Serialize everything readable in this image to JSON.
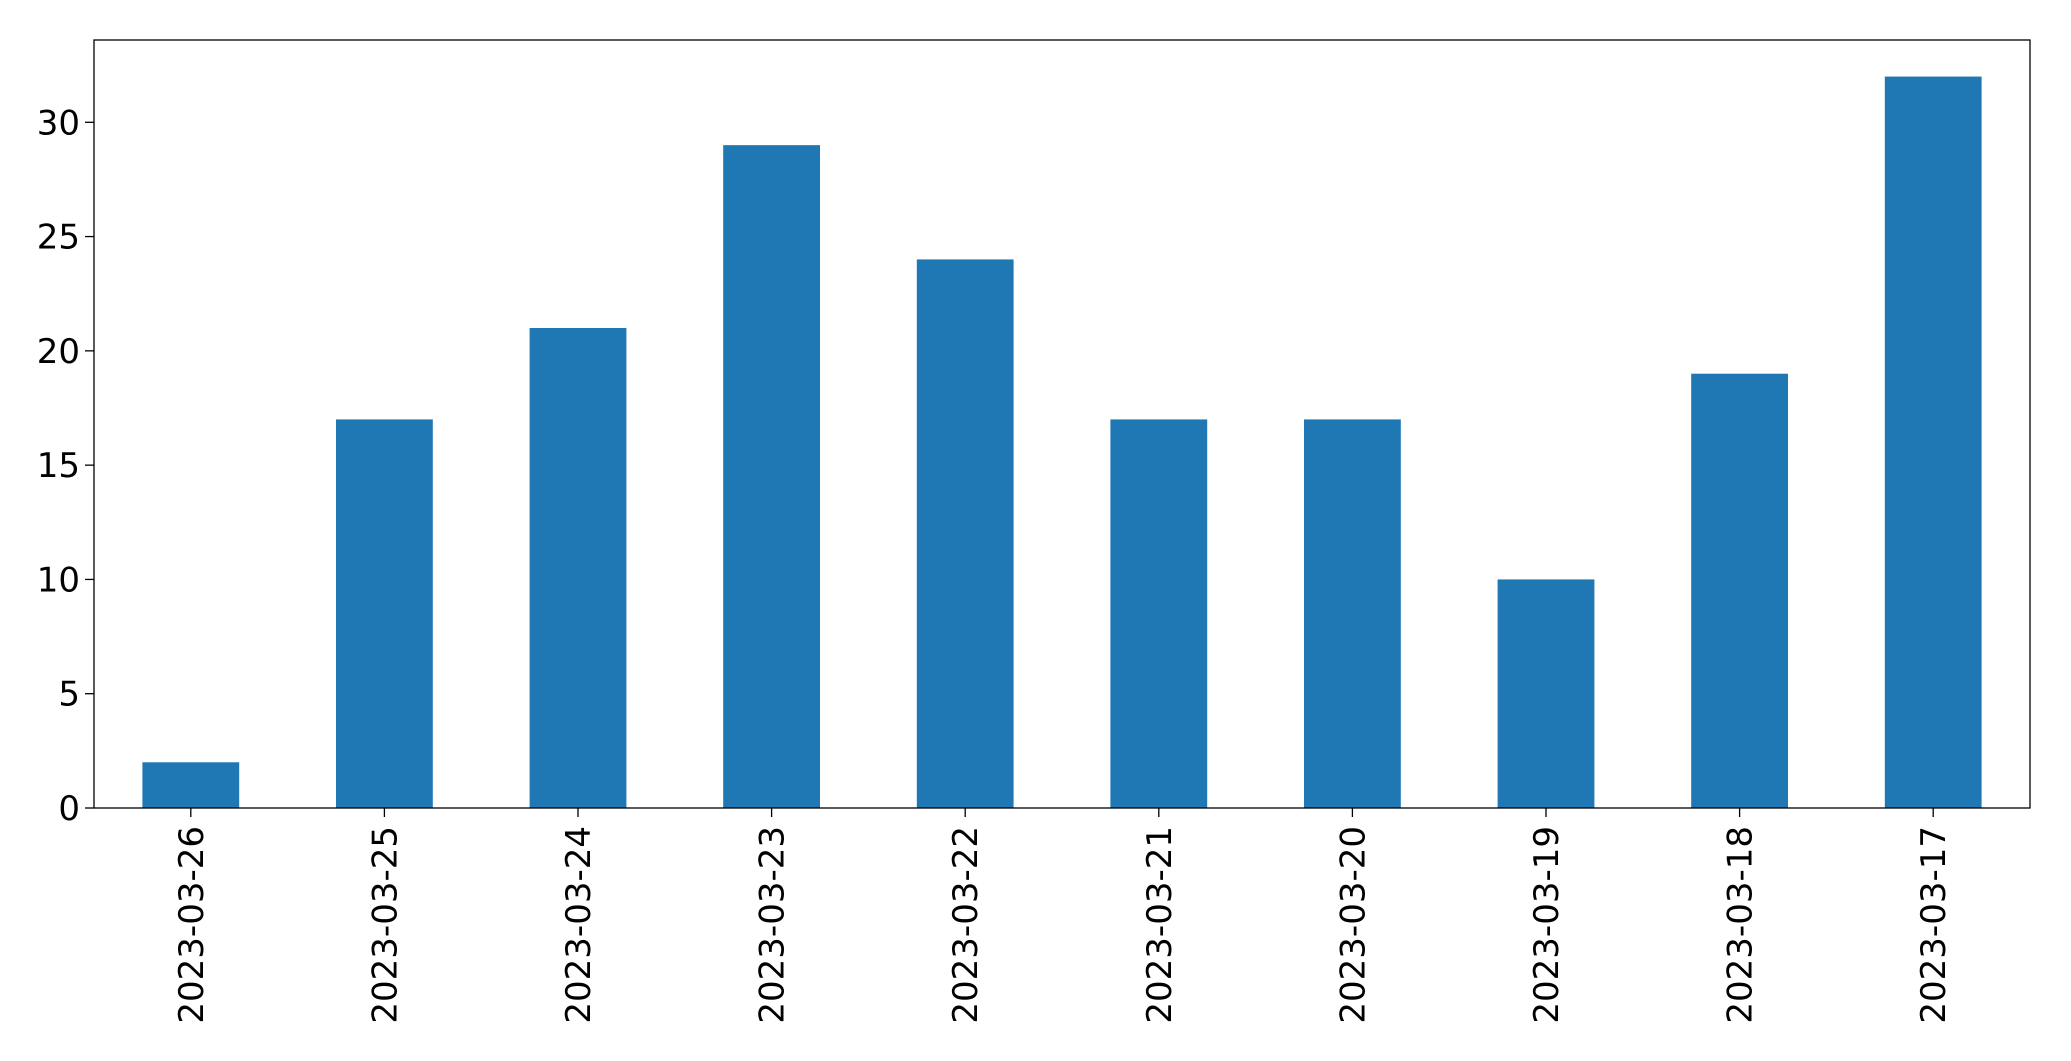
{
  "chart_data": {
    "type": "bar",
    "categories": [
      "2023-03-26",
      "2023-03-25",
      "2023-03-24",
      "2023-03-23",
      "2023-03-22",
      "2023-03-21",
      "2023-03-20",
      "2023-03-19",
      "2023-03-18",
      "2023-03-17"
    ],
    "values": [
      2,
      17,
      21,
      29,
      24,
      17,
      17,
      10,
      19,
      32
    ],
    "color": "#1f77b4",
    "ylim": [
      0,
      33.6
    ],
    "yticks": [
      0,
      5,
      10,
      15,
      20,
      25,
      30
    ],
    "grid": false
  }
}
